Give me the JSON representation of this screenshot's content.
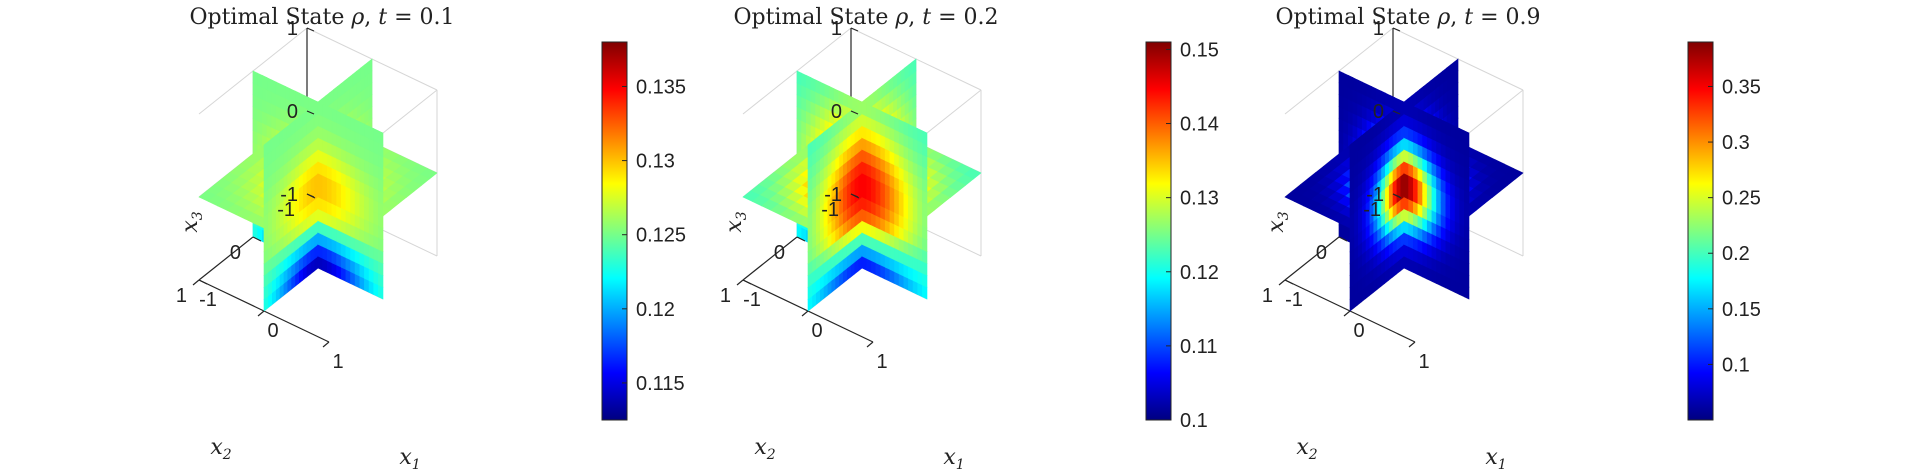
{
  "chart_data": [
    {
      "type": "slice",
      "title": "Optimal State ρ, t = 0.1",
      "title_parts": {
        "prefix": "Optimal State ",
        "symbol": "ρ",
        "t_label": "t",
        "t_value": "0.1"
      },
      "xlabel": "x1",
      "ylabel": "x2",
      "zlabel": "x3",
      "axis_labels": {
        "x": {
          "base": "x",
          "sub": "1"
        },
        "y": {
          "base": "x",
          "sub": "2"
        },
        "z": {
          "base": "x",
          "sub": "3"
        }
      },
      "x_ticks": [
        "-1",
        "0",
        "1"
      ],
      "y_ticks": [
        "-1",
        "0",
        "1"
      ],
      "z_ticks": [
        "-1",
        "0",
        "1"
      ],
      "colorbar": {
        "colormap": "jet",
        "min": 0.1125,
        "max": 0.138,
        "ticks": [
          0.115,
          0.12,
          0.125,
          0.13,
          0.135
        ],
        "tick_labels": [
          "0.115",
          "0.12",
          "0.125",
          "0.13",
          "0.135"
        ]
      },
      "field": {
        "center": 0.13,
        "background": 0.125,
        "bottom": 0.114,
        "shape": "flat"
      },
      "slices": [
        "x1=0",
        "x2=0",
        "x3=0"
      ]
    },
    {
      "type": "slice",
      "title": "Optimal State ρ, t = 0.2",
      "title_parts": {
        "prefix": "Optimal State ",
        "symbol": "ρ",
        "t_label": "t",
        "t_value": "0.2"
      },
      "xlabel": "x1",
      "ylabel": "x2",
      "zlabel": "x3",
      "axis_labels": {
        "x": {
          "base": "x",
          "sub": "1"
        },
        "y": {
          "base": "x",
          "sub": "2"
        },
        "z": {
          "base": "x",
          "sub": "3"
        }
      },
      "x_ticks": [
        "-1",
        "0",
        "1"
      ],
      "y_ticks": [
        "-1",
        "0",
        "1"
      ],
      "z_ticks": [
        "-1",
        "0",
        "1"
      ],
      "colorbar": {
        "colormap": "jet",
        "min": 0.1,
        "max": 0.151,
        "ticks": [
          0.1,
          0.11,
          0.12,
          0.13,
          0.14,
          0.15
        ],
        "tick_labels": [
          "0.1",
          "0.11",
          "0.12",
          "0.13",
          "0.14",
          "0.15"
        ]
      },
      "field": {
        "center": 0.145,
        "background": 0.122,
        "bottom": 0.103,
        "shape": "triangle"
      },
      "slices": [
        "x1=0",
        "x2=0",
        "x3=0"
      ]
    },
    {
      "type": "slice",
      "title": "Optimal State ρ, t = 0.9",
      "title_parts": {
        "prefix": "Optimal State ",
        "symbol": "ρ",
        "t_label": "t",
        "t_value": "0.9"
      },
      "xlabel": "x1",
      "ylabel": "x2",
      "zlabel": "x3",
      "axis_labels": {
        "x": {
          "base": "x",
          "sub": "1"
        },
        "y": {
          "base": "x",
          "sub": "2"
        },
        "z": {
          "base": "x",
          "sub": "3"
        }
      },
      "x_ticks": [
        "-1",
        "0",
        "1"
      ],
      "y_ticks": [
        "-1",
        "0",
        "1"
      ],
      "z_ticks": [
        "-1",
        "0",
        "1"
      ],
      "colorbar": {
        "colormap": "jet",
        "min": 0.05,
        "max": 0.39,
        "ticks": [
          0.1,
          0.15,
          0.2,
          0.25,
          0.3,
          0.35
        ],
        "tick_labels": [
          "0.1",
          "0.15",
          "0.2",
          "0.25",
          "0.3",
          "0.35"
        ]
      },
      "field": {
        "center": 0.39,
        "background": 0.06,
        "bottom": 0.06,
        "shape": "peak"
      },
      "slices": [
        "x1=0",
        "x2=0",
        "x3=0"
      ]
    }
  ]
}
